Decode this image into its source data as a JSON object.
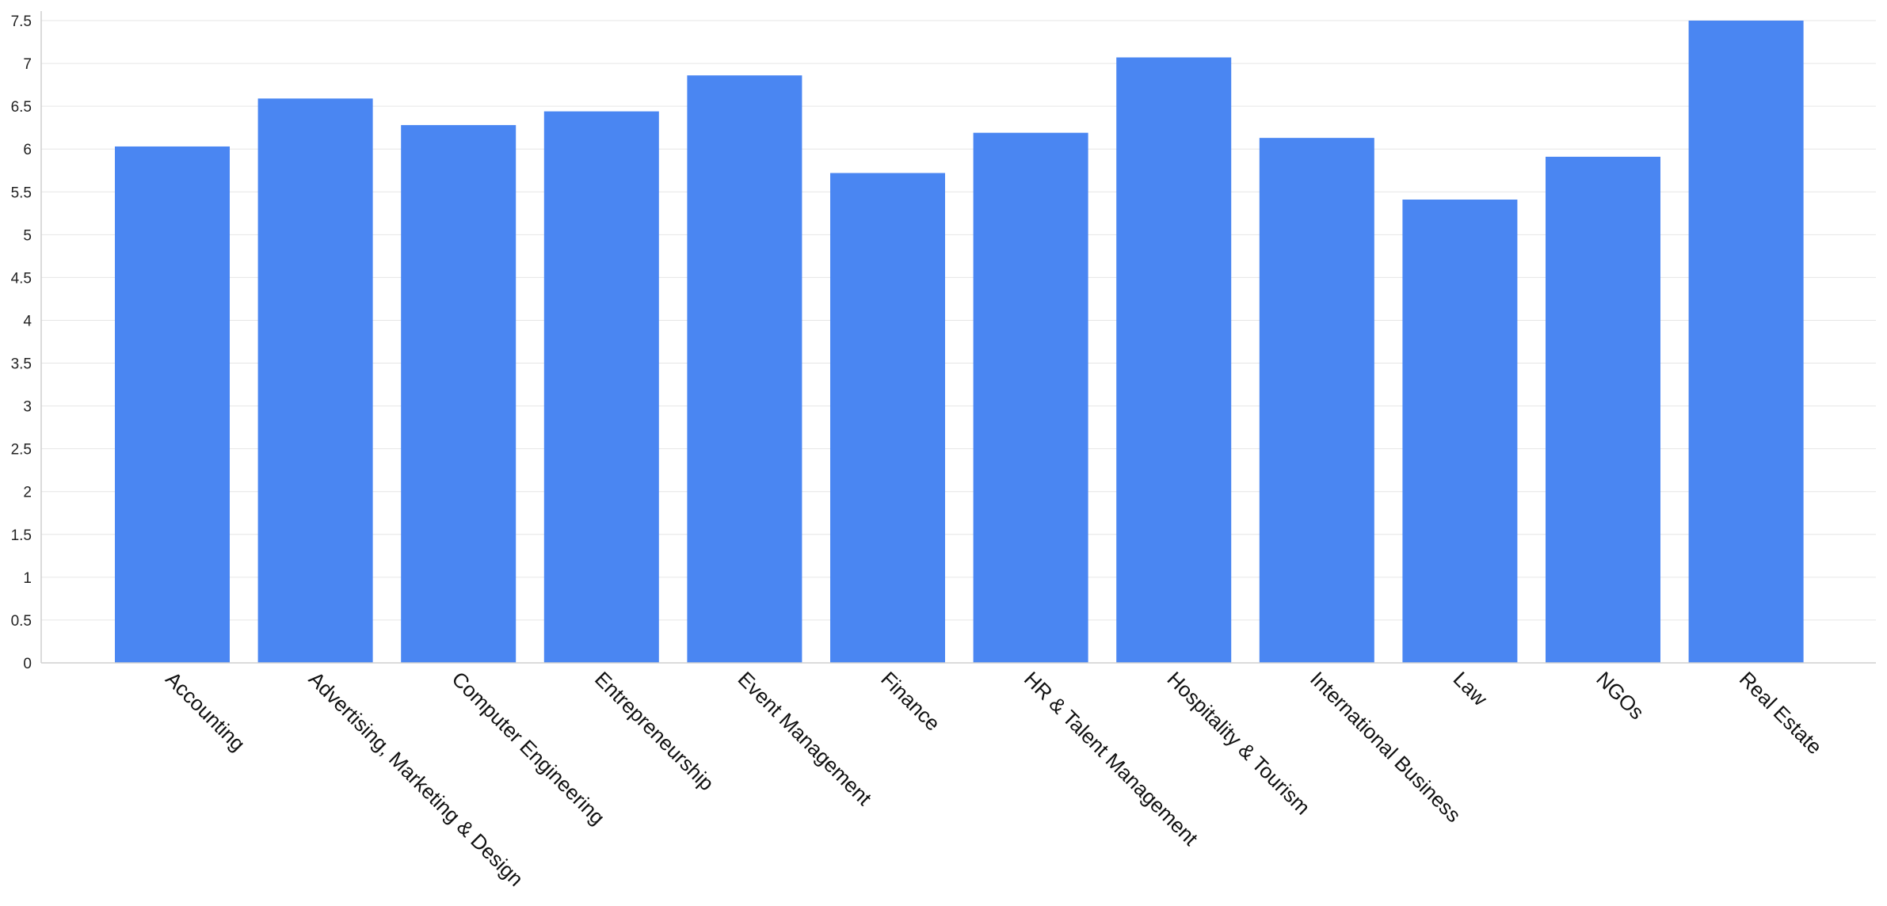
{
  "chart_data": {
    "type": "bar",
    "title": "",
    "xlabel": "",
    "ylabel": "",
    "categories": [
      "Accounting",
      "Advertising, Marketing & Design",
      "Computer Engineering",
      "Entrepreneurship",
      "Event Management",
      "Finance",
      "HR & Talent Management",
      "Hospitality & Tourism",
      "International Business",
      "Law",
      "NGOs",
      "Real Estate"
    ],
    "values": [
      6.03,
      6.59,
      6.28,
      6.44,
      6.86,
      5.72,
      6.19,
      7.07,
      6.13,
      5.41,
      5.91,
      7.5
    ],
    "ylim": [
      0,
      7.5
    ],
    "yticks": [
      "0",
      "0.5",
      "1",
      "1.5",
      "2",
      "2.5",
      "3",
      "3.5",
      "4",
      "4.5",
      "5",
      "5.5",
      "6",
      "6.5",
      "7",
      "7.5"
    ],
    "grid": true,
    "legend": "none",
    "bar_color": "#4a86f2"
  }
}
